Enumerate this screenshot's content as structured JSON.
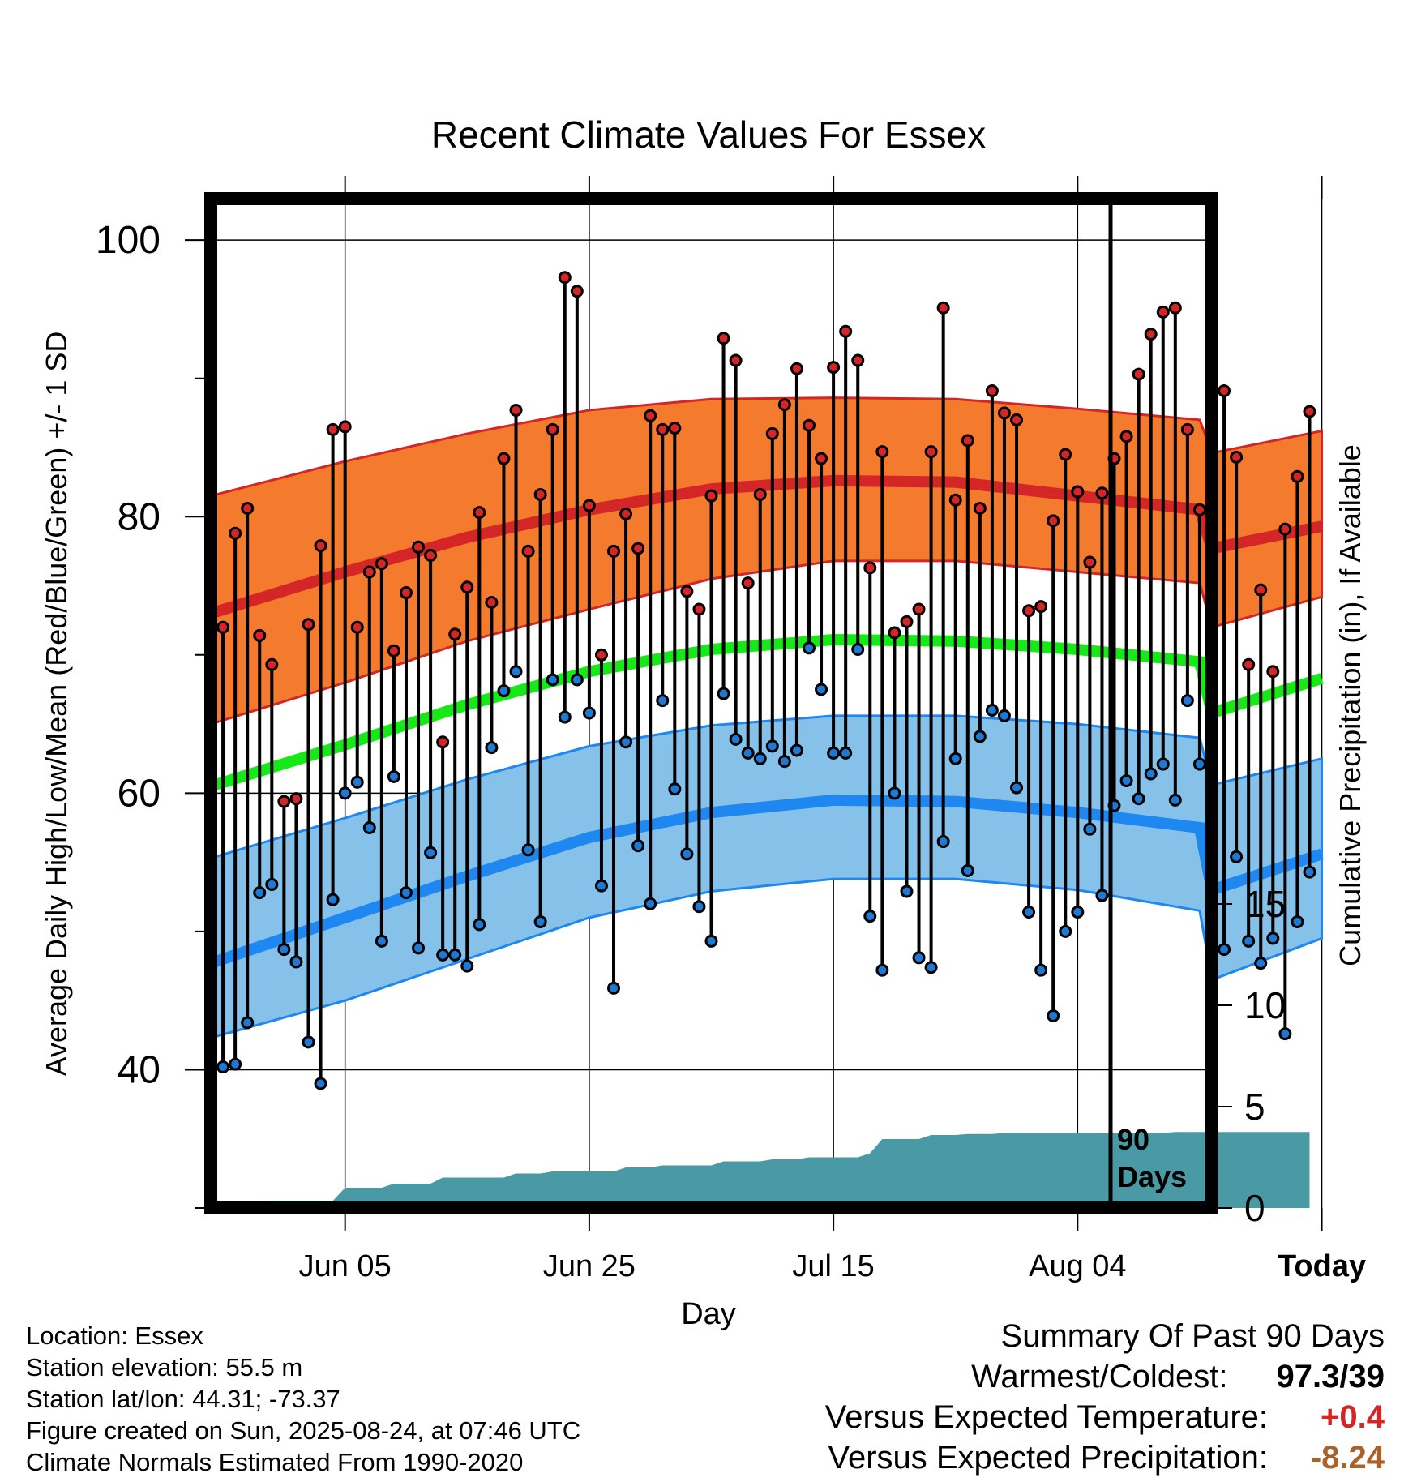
{
  "chart_data": {
    "type": "line",
    "title": "Recent Climate Values For Essex",
    "xlabel": "Day",
    "ylabel": "Average Daily High/Low/Mean (Red/Blue/Green) +/- 1 SD",
    "y2label": "Cumulative Precipitation (in), If Available",
    "x_range_days": [
      -91,
      -9
    ],
    "ylim": [
      30,
      103
    ],
    "y_ticks": [
      40,
      60,
      80,
      100
    ],
    "y2_ticks": [
      0,
      5,
      10,
      15
    ],
    "x_ticks": [
      {
        "day": -80,
        "label": "Jun 05"
      },
      {
        "day": -60,
        "label": "Jun 25"
      },
      {
        "day": -40,
        "label": "Jul 15"
      },
      {
        "day": -20,
        "label": "Aug 04"
      },
      {
        "day": 0,
        "label": "Today"
      }
    ],
    "days_label": "90 Days",
    "colors": {
      "high_band": "#f47a2e",
      "high_line": "#d42626",
      "low_band": "#86c1ea",
      "low_line": "#1e88f0",
      "mean_line": "#17e817",
      "precip": "#4a9aa6",
      "high_dot": "#d42626",
      "low_dot": "#1f78d1"
    },
    "normals": {
      "days": [
        -91,
        -80,
        -70,
        -60,
        -50,
        -40,
        -30,
        -20,
        -10,
        0,
        -9
      ],
      "high_mean": [
        73,
        76,
        78.5,
        80.5,
        82,
        82.6,
        82.5,
        81.5,
        80.5,
        79.3,
        77.7
      ],
      "high_sd_upper": [
        81.5,
        84,
        86,
        87.7,
        88.5,
        88.6,
        88.5,
        87.8,
        87,
        86.2,
        84.6
      ],
      "high_sd_lower": [
        65,
        68,
        71,
        73.3,
        75.5,
        76.8,
        76.8,
        76,
        75.2,
        74.2,
        72
      ],
      "mean": [
        60.5,
        63.5,
        66.4,
        68.8,
        70.4,
        71.1,
        71,
        70.4,
        69.5,
        68.3,
        65.8
      ],
      "low_mean": [
        47.7,
        51,
        54,
        56.8,
        58.6,
        59.5,
        59.4,
        58.6,
        57.5,
        55.6,
        53
      ],
      "low_sd_upper": [
        55.3,
        58.2,
        61,
        63.4,
        64.9,
        65.6,
        65.6,
        65,
        64,
        62.5,
        60.6
      ],
      "low_sd_lower": [
        42.3,
        45,
        48,
        51,
        52.9,
        53.8,
        53.8,
        53,
        51.5,
        49.5,
        46.5
      ]
    },
    "series": [
      {
        "name": "High",
        "x": [
          -90,
          -89,
          -88,
          -87,
          -86,
          -85,
          -84,
          -83,
          -82,
          -81,
          -80,
          -79,
          -78,
          -77,
          -76,
          -75,
          -74,
          -73,
          -72,
          -71,
          -70,
          -69,
          -68,
          -67,
          -66,
          -65,
          -64,
          -63,
          -62,
          -61,
          -60,
          -59,
          -58,
          -57,
          -56,
          -55,
          -54,
          -53,
          -52,
          -51,
          -50,
          -49,
          -48,
          -47,
          -46,
          -45,
          -44,
          -43,
          -42,
          -41,
          -40,
          -39,
          -38,
          -37,
          -36,
          -35,
          -34,
          -33,
          -32,
          -31,
          -30,
          -29,
          -28,
          -27,
          -26,
          -25,
          -24,
          -23,
          -22,
          -21,
          -20,
          -19,
          -18,
          -17,
          -16,
          -15,
          -14,
          -13,
          -12,
          -11,
          -10,
          -9,
          -8,
          -7,
          -6,
          -5,
          -4,
          -3,
          -2,
          -1
        ],
        "values": [
          72,
          78.8,
          80.6,
          71.4,
          69.3,
          59.4,
          59.6,
          72.2,
          77.9,
          86.3,
          86.5,
          72,
          76,
          76.6,
          70.3,
          74.5,
          77.8,
          77.2,
          63.7,
          71.5,
          74.9,
          80.3,
          73.8,
          84.2,
          87.7,
          77.5,
          81.6,
          86.3,
          97.3,
          96.3,
          80.8,
          70,
          77.5,
          80.2,
          77.7,
          87.3,
          86.3,
          86.4,
          74.6,
          73.3,
          81.5,
          92.9,
          91.3,
          75.2,
          81.6,
          86,
          88.1,
          90.7,
          86.6,
          84.2,
          90.8,
          93.4,
          91.3,
          76.3,
          84.7,
          71.6,
          72.4,
          73.3,
          84.7,
          95.1,
          81.2,
          85.5,
          80.6,
          89.1,
          87.5,
          87,
          73.2,
          73.5,
          79.7,
          84.5,
          81.8,
          76.7,
          81.7,
          84.2,
          85.8,
          90.3,
          93.2,
          94.8,
          95.1,
          86.3,
          80.5,
          81.7,
          89.1,
          84.3,
          69.3,
          74.7,
          68.8,
          79.1,
          82.9,
          87.6
        ]
      },
      {
        "name": "Low",
        "x": [
          -90,
          -89,
          -88,
          -87,
          -86,
          -85,
          -84,
          -83,
          -82,
          -81,
          -80,
          -79,
          -78,
          -77,
          -76,
          -75,
          -74,
          -73,
          -72,
          -71,
          -70,
          -69,
          -68,
          -67,
          -66,
          -65,
          -64,
          -63,
          -62,
          -61,
          -60,
          -59,
          -58,
          -57,
          -56,
          -55,
          -54,
          -53,
          -52,
          -51,
          -50,
          -49,
          -48,
          -47,
          -46,
          -45,
          -44,
          -43,
          -42,
          -41,
          -40,
          -39,
          -38,
          -37,
          -36,
          -35,
          -34,
          -33,
          -32,
          -31,
          -30,
          -29,
          -28,
          -27,
          -26,
          -25,
          -24,
          -23,
          -22,
          -21,
          -20,
          -19,
          -18,
          -17,
          -16,
          -15,
          -14,
          -13,
          -12,
          -11,
          -10,
          -9,
          -8,
          -7,
          -6,
          -5,
          -4,
          -3,
          -2,
          -1
        ],
        "values": [
          40.2,
          40.4,
          43.4,
          52.8,
          53.4,
          48.7,
          47.8,
          42,
          39,
          52.3,
          60,
          60.8,
          57.5,
          49.3,
          61.2,
          52.8,
          48.8,
          55.7,
          48.3,
          48.3,
          47.5,
          50.5,
          63.3,
          67.4,
          68.8,
          55.9,
          50.7,
          68.2,
          65.5,
          68.2,
          65.8,
          53.3,
          45.9,
          63.7,
          56.2,
          52,
          66.7,
          60.3,
          55.6,
          51.8,
          49.3,
          67.2,
          63.9,
          62.9,
          62.5,
          63.4,
          62.3,
          63.1,
          70.5,
          67.5,
          62.9,
          62.9,
          70.4,
          51.1,
          47.2,
          60,
          52.9,
          48.1,
          47.4,
          56.5,
          62.5,
          54.4,
          64.1,
          66,
          65.6,
          60.4,
          51.4,
          47.2,
          43.9,
          50,
          51.4,
          57.4,
          52.6,
          59.1,
          60.9,
          59.6,
          61.4,
          62.1,
          59.5,
          66.7,
          62.1,
          52.2,
          48.7,
          55.4,
          49.3,
          47.7,
          49.5,
          42.6,
          50.7,
          54.3
        ]
      },
      {
        "name": "Precipitation",
        "x": [
          -91,
          -86,
          -81,
          -80,
          -77,
          -76,
          -73,
          -72,
          -67,
          -66,
          -64,
          -63,
          -58,
          -57,
          -55,
          -54,
          -50,
          -49,
          -46,
          -45,
          -43,
          -42,
          -38,
          -37,
          -36,
          -33,
          -32,
          -30,
          -29,
          -27,
          -26,
          -24,
          -13,
          -12,
          -1
        ],
        "values": [
          0,
          0.35,
          0.35,
          1,
          1,
          1.2,
          1.2,
          1.5,
          1.5,
          1.7,
          1.7,
          1.8,
          1.8,
          2,
          2,
          2.1,
          2.1,
          2.3,
          2.3,
          2.4,
          2.4,
          2.5,
          2.5,
          2.7,
          3.4,
          3.4,
          3.6,
          3.6,
          3.65,
          3.65,
          3.7,
          3.7,
          3.7,
          3.75,
          3.75
        ]
      }
    ]
  },
  "info": {
    "location": "Location: Essex",
    "elevation": "Station elevation: 55.5 m",
    "latlon": "Station lat/lon: 44.31; -73.37",
    "created": "Figure created on Sun, 2025-08-24, at 07:46 UTC",
    "normals": "Climate Normals Estimated From 1990-2020"
  },
  "summary": {
    "title": "Summary Of Past 90 Days",
    "warm_cold_label": "Warmest/Coldest:",
    "warm_cold_value": "97.3/39",
    "temp_label": "Versus Expected Temperature:",
    "temp_value": "+0.4",
    "temp_color": "#d42626",
    "precip_label": "Versus Expected Precipitation:",
    "precip_value": "-8.24",
    "precip_color": "#a8622b"
  }
}
